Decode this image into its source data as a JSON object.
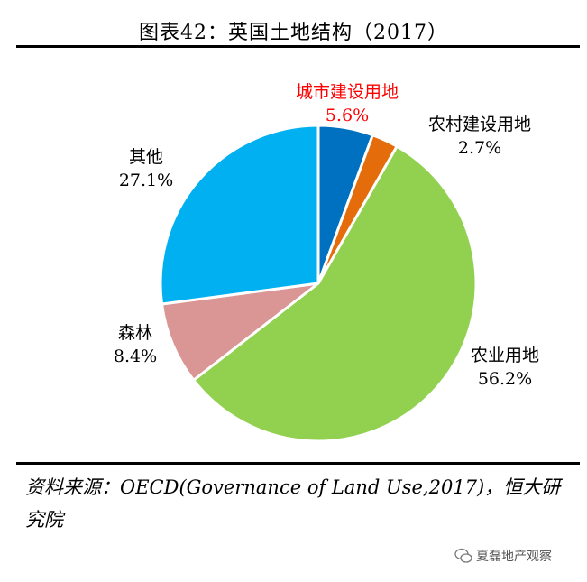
{
  "title": "图表42：英国土地结构（2017）",
  "source": "资料来源：OECD(Governance of Land Use,2017)，恒大研究院",
  "watermark": "夏磊地产观察",
  "chart_data": {
    "type": "pie",
    "title": "图表42：英国土地结构（2017）",
    "start_angle_deg": 0,
    "direction": "clockwise",
    "slices": [
      {
        "label": "城市建设用地",
        "value": 5.6,
        "value_label": "5.6%",
        "color": "#0070C0",
        "label_color": "#FF0000"
      },
      {
        "label": "农村建设用地",
        "value": 2.7,
        "value_label": "2.7%",
        "color": "#E46C0A",
        "label_color": "#000000"
      },
      {
        "label": "农业用地",
        "value": 56.2,
        "value_label": "56.2%",
        "color": "#92D050",
        "label_color": "#000000"
      },
      {
        "label": "森林",
        "value": 8.4,
        "value_label": "8.4%",
        "color": "#D99694",
        "label_color": "#000000"
      },
      {
        "label": "其他",
        "value": 27.1,
        "value_label": "27.1%",
        "color": "#00B0F0",
        "label_color": "#000000"
      }
    ]
  }
}
